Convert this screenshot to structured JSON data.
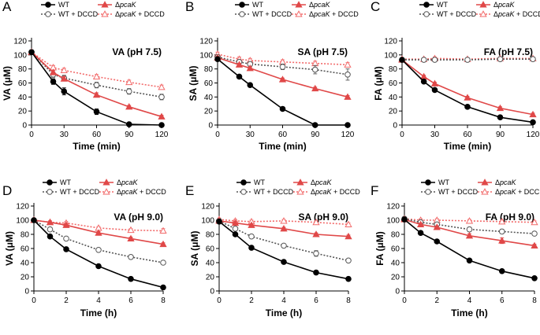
{
  "chart_data": [
    {
      "type": "line",
      "panel": "A",
      "title": "VA (pH 7.5)",
      "xlabel": "Time (min)",
      "ylabel": "VA (μM)",
      "x": [
        0,
        20,
        30,
        60,
        90,
        120
      ],
      "xticks": [
        0,
        30,
        60,
        90,
        120
      ],
      "xlim": [
        0,
        120
      ],
      "yticks": [
        0,
        20,
        40,
        60,
        80,
        100,
        120
      ],
      "ylim": [
        0,
        120
      ],
      "series": [
        {
          "name": "WT",
          "values": [
            104,
            62,
            48,
            19,
            1,
            0
          ],
          "errors": [
            3,
            4,
            5,
            4,
            0,
            0
          ]
        },
        {
          "name": "ΔpcaK",
          "values": [
            104,
            75,
            66,
            43,
            26,
            12
          ],
          "errors": [
            3,
            3,
            3,
            3,
            2,
            2
          ]
        },
        {
          "name": "WT + DCCD",
          "values": [
            104,
            72,
            67,
            57,
            48,
            40
          ],
          "errors": [
            3,
            4,
            4,
            4,
            4,
            4
          ]
        },
        {
          "name": "ΔpcaK + DCCD",
          "values": [
            104,
            82,
            78,
            69,
            61,
            54
          ],
          "errors": [
            3,
            3,
            3,
            3,
            3,
            3
          ]
        }
      ]
    },
    {
      "type": "line",
      "panel": "B",
      "title": "SA (pH 7.5)",
      "xlabel": "Time (min)",
      "ylabel": "SA (μM)",
      "x": [
        0,
        20,
        30,
        60,
        90,
        120
      ],
      "xticks": [
        0,
        30,
        60,
        90,
        120
      ],
      "xlim": [
        0,
        120
      ],
      "yticks": [
        0,
        20,
        40,
        60,
        80,
        100,
        120
      ],
      "ylim": [
        0,
        120
      ],
      "series": [
        {
          "name": "WT",
          "values": [
            94,
            69,
            57,
            23,
            0,
            0
          ],
          "errors": [
            2,
            2,
            2,
            2,
            0,
            0
          ]
        },
        {
          "name": "ΔpcaK",
          "values": [
            96,
            86,
            81,
            65,
            52,
            40
          ],
          "errors": [
            2,
            2,
            2,
            2,
            2,
            2
          ]
        },
        {
          "name": "WT + DCCD",
          "values": [
            97,
            90,
            87,
            83,
            79,
            72
          ],
          "errors": [
            3,
            3,
            3,
            4,
            6,
            8
          ]
        },
        {
          "name": "ΔpcaK + DCCD",
          "values": [
            101,
            94,
            92,
            90,
            88,
            86
          ],
          "errors": [
            3,
            3,
            3,
            3,
            3,
            3
          ]
        }
      ]
    },
    {
      "type": "line",
      "panel": "C",
      "title": "FA (pH 7.5)",
      "xlabel": "Time (min)",
      "ylabel": "FA (μM)",
      "x": [
        0,
        20,
        30,
        60,
        90,
        120
      ],
      "xticks": [
        0,
        30,
        60,
        90,
        120
      ],
      "xlim": [
        0,
        120
      ],
      "yticks": [
        0,
        20,
        40,
        60,
        80,
        100,
        120
      ],
      "ylim": [
        0,
        120
      ],
      "series": [
        {
          "name": "WT",
          "values": [
            93,
            62,
            50,
            26,
            11,
            4
          ],
          "errors": [
            2,
            2,
            2,
            2,
            2,
            2
          ]
        },
        {
          "name": "ΔpcaK",
          "values": [
            93,
            69,
            59,
            39,
            24,
            15
          ],
          "errors": [
            2,
            2,
            2,
            2,
            2,
            2
          ]
        },
        {
          "name": "WT + DCCD",
          "values": [
            93,
            93,
            93,
            93,
            94,
            94
          ],
          "errors": [
            2,
            2,
            2,
            2,
            2,
            2
          ]
        },
        {
          "name": "ΔpcaK + DCCD",
          "values": [
            94,
            94,
            95,
            94,
            95,
            95
          ],
          "errors": [
            2,
            2,
            2,
            2,
            2,
            2
          ]
        }
      ]
    },
    {
      "type": "line",
      "panel": "D",
      "title": "VA (pH 9.0)",
      "xlabel": "Time (h)",
      "ylabel": "VA (μM)",
      "x": [
        0,
        1,
        2,
        4,
        6,
        8
      ],
      "xticks": [
        0,
        2,
        4,
        6,
        8
      ],
      "xlim": [
        0,
        8
      ],
      "yticks": [
        0,
        20,
        40,
        60,
        80,
        100,
        120
      ],
      "ylim": [
        0,
        120
      ],
      "series": [
        {
          "name": "WT",
          "values": [
            100,
            77,
            59,
            35,
            17,
            5
          ],
          "errors": [
            2,
            2,
            2,
            2,
            2,
            2
          ]
        },
        {
          "name": "ΔpcaK",
          "values": [
            100,
            97,
            93,
            82,
            74,
            66
          ],
          "errors": [
            2,
            2,
            2,
            2,
            2,
            2
          ]
        },
        {
          "name": "WT + DCCD",
          "values": [
            100,
            87,
            74,
            58,
            48,
            40
          ],
          "errors": [
            2,
            2,
            2,
            2,
            2,
            2
          ]
        },
        {
          "name": "ΔpcaK + DCCD",
          "values": [
            100,
            97,
            96,
            89,
            86,
            85
          ],
          "errors": [
            2,
            2,
            2,
            2,
            2,
            3
          ]
        }
      ]
    },
    {
      "type": "line",
      "panel": "E",
      "title": "SA (pH 9.0)",
      "xlabel": "Time (h)",
      "ylabel": "SA (μM)",
      "x": [
        0,
        1,
        2,
        4,
        6,
        8
      ],
      "xticks": [
        0,
        2,
        4,
        6,
        8
      ],
      "xlim": [
        0,
        8
      ],
      "yticks": [
        0,
        20,
        40,
        60,
        80,
        100,
        120
      ],
      "ylim": [
        0,
        120
      ],
      "series": [
        {
          "name": "WT",
          "values": [
            98,
            80,
            61,
            41,
            26,
            17
          ],
          "errors": [
            2,
            2,
            2,
            2,
            2,
            2
          ]
        },
        {
          "name": "ΔpcaK",
          "values": [
            99,
            96,
            93,
            88,
            80,
            77
          ],
          "errors": [
            2,
            2,
            2,
            2,
            2,
            2
          ]
        },
        {
          "name": "WT + DCCD",
          "values": [
            99,
            88,
            77,
            64,
            53,
            43
          ],
          "errors": [
            2,
            2,
            2,
            2,
            4,
            2
          ]
        },
        {
          "name": "ΔpcaK + DCCD",
          "values": [
            101,
            99,
            98,
            99,
            97,
            94
          ],
          "errors": [
            2,
            2,
            2,
            2,
            2,
            2
          ]
        }
      ]
    },
    {
      "type": "line",
      "panel": "F",
      "title": "FA (pH 9.0)",
      "xlabel": "Time (h)",
      "ylabel": "FA (μM)",
      "x": [
        0,
        1,
        2,
        4,
        6,
        8
      ],
      "xticks": [
        0,
        2,
        4,
        6,
        8
      ],
      "xlim": [
        0,
        8
      ],
      "yticks": [
        0,
        20,
        40,
        60,
        80,
        100,
        120
      ],
      "ylim": [
        0,
        120
      ],
      "series": [
        {
          "name": "WT",
          "values": [
            101,
            82,
            70,
            43,
            28,
            18
          ],
          "errors": [
            2,
            2,
            2,
            2,
            2,
            2
          ]
        },
        {
          "name": "ΔpcaK",
          "values": [
            101,
            94,
            90,
            78,
            71,
            64
          ],
          "errors": [
            2,
            2,
            2,
            3,
            4,
            2
          ]
        },
        {
          "name": "WT + DCCD",
          "values": [
            102,
            97,
            94,
            87,
            84,
            81
          ],
          "errors": [
            2,
            2,
            2,
            3,
            3,
            2
          ]
        },
        {
          "name": "ΔpcaK + DCCD",
          "values": [
            102,
            100,
            100,
            99,
            98,
            97
          ],
          "errors": [
            2,
            2,
            2,
            2,
            2,
            2
          ]
        }
      ]
    }
  ],
  "legend": {
    "entries": [
      "WT",
      "ΔpcaK",
      "WT + DCCD",
      "ΔpcaK + DCCD"
    ],
    "placement": "top-right"
  },
  "colors": {
    "WT": "#000000",
    "pcaK": "#e04848",
    "WT_DCCD": "#555555",
    "pcaK_DCCD": "#f26a6a",
    "axis": "#000000"
  }
}
